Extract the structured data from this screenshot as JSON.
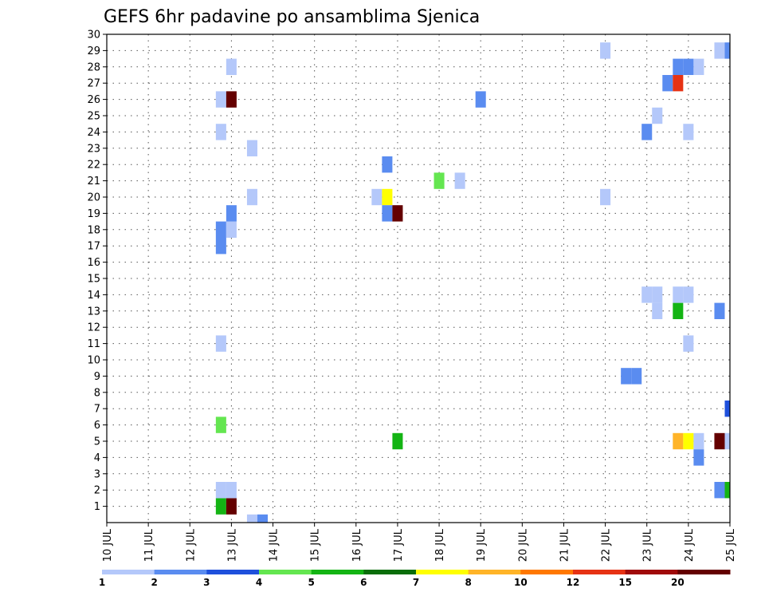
{
  "chart_data": {
    "type": "heatmap",
    "title": "GEFS 6hr padavine po ansamblima Sjenica",
    "xlabel": "",
    "ylabel": "",
    "x_ticks": [
      "10 JUL",
      "11 JUL",
      "12 JUL",
      "13 JUL",
      "14 JUL",
      "15 JUL",
      "16 JUL",
      "17 JUL",
      "18 JUL",
      "19 JUL",
      "20 JUL",
      "21 JUL",
      "22 JUL",
      "23 JUL",
      "24 JUL",
      "25 JUL"
    ],
    "x_range_days": [
      10,
      25
    ],
    "y_ticks": [
      "1",
      "2",
      "3",
      "4",
      "5",
      "6",
      "7",
      "8",
      "9",
      "10",
      "11",
      "12",
      "13",
      "14",
      "15",
      "16",
      "17",
      "18",
      "19",
      "20",
      "21",
      "22",
      "23",
      "24",
      "25",
      "26",
      "27",
      "28",
      "29",
      "30"
    ],
    "y_range": [
      0,
      30
    ],
    "grid": true,
    "colorbar": {
      "labels": [
        "1",
        "2",
        "3",
        "4",
        "5",
        "6",
        "7",
        "8",
        "10",
        "12",
        "15",
        "20"
      ],
      "colors": [
        "#b4c8fa",
        "#5a8cf0",
        "#1e50dc",
        "#64e650",
        "#14b414",
        "#0a6e0a",
        "#ffff00",
        "#ffb428",
        "#ff7800",
        "#e63214",
        "#a00a0a",
        "#640000"
      ]
    },
    "points": [
      {
        "t": 13.5,
        "m": 0,
        "v": 1.5
      },
      {
        "t": 13.75,
        "m": 0,
        "v": 2.5
      },
      {
        "t": 12.75,
        "m": 1,
        "v": 5.5
      },
      {
        "t": 13.0,
        "m": 1,
        "v": 20
      },
      {
        "t": 12.75,
        "m": 2,
        "v": 1.5
      },
      {
        "t": 13.0,
        "m": 2,
        "v": 1.5
      },
      {
        "t": 12.75,
        "m": 6,
        "v": 4.5
      },
      {
        "t": 12.75,
        "m": 11,
        "v": 1.5
      },
      {
        "t": 12.75,
        "m": 17,
        "v": 2.5
      },
      {
        "t": 12.75,
        "m": 18,
        "v": 2.5
      },
      {
        "t": 13.0,
        "m": 18,
        "v": 1.5
      },
      {
        "t": 13.0,
        "m": 19,
        "v": 2.5
      },
      {
        "t": 12.75,
        "m": 24,
        "v": 1.5
      },
      {
        "t": 12.75,
        "m": 26,
        "v": 1.5
      },
      {
        "t": 13.0,
        "m": 26,
        "v": 20
      },
      {
        "t": 13.0,
        "m": 28,
        "v": 1.5
      },
      {
        "t": 13.5,
        "m": 20,
        "v": 1.5
      },
      {
        "t": 13.5,
        "m": 23,
        "v": 1.5
      },
      {
        "t": 16.5,
        "m": 20,
        "v": 1.5
      },
      {
        "t": 16.75,
        "m": 20,
        "v": 7.5
      },
      {
        "t": 16.75,
        "m": 19,
        "v": 2.5
      },
      {
        "t": 17.0,
        "m": 19,
        "v": 20
      },
      {
        "t": 16.75,
        "m": 22,
        "v": 2.5
      },
      {
        "t": 17.0,
        "m": 5,
        "v": 5.5
      },
      {
        "t": 18.0,
        "m": 21,
        "v": 4.5
      },
      {
        "t": 18.5,
        "m": 21,
        "v": 1.5
      },
      {
        "t": 19.0,
        "m": 26,
        "v": 2.5
      },
      {
        "t": 22.0,
        "m": 20,
        "v": 1.5
      },
      {
        "t": 22.0,
        "m": 29,
        "v": 1.5
      },
      {
        "t": 22.5,
        "m": 9,
        "v": 2.5
      },
      {
        "t": 22.75,
        "m": 9,
        "v": 2.5
      },
      {
        "t": 23.0,
        "m": 14,
        "v": 1.5
      },
      {
        "t": 23.25,
        "m": 14,
        "v": 1.5
      },
      {
        "t": 23.25,
        "m": 13,
        "v": 1.5
      },
      {
        "t": 23.0,
        "m": 24,
        "v": 2.5
      },
      {
        "t": 23.25,
        "m": 25,
        "v": 1.5
      },
      {
        "t": 23.5,
        "m": 27,
        "v": 2.5
      },
      {
        "t": 23.75,
        "m": 27,
        "v": 12.5
      },
      {
        "t": 23.75,
        "m": 28,
        "v": 2.5
      },
      {
        "t": 24.0,
        "m": 28,
        "v": 2.5
      },
      {
        "t": 24.25,
        "m": 28,
        "v": 1.5
      },
      {
        "t": 23.75,
        "m": 5,
        "v": 9
      },
      {
        "t": 24.0,
        "m": 5,
        "v": 7.5
      },
      {
        "t": 24.25,
        "m": 5,
        "v": 1.5
      },
      {
        "t": 24.25,
        "m": 4,
        "v": 2.5
      },
      {
        "t": 23.75,
        "m": 13,
        "v": 5.5
      },
      {
        "t": 23.75,
        "m": 14,
        "v": 1.5
      },
      {
        "t": 24.0,
        "m": 14,
        "v": 1.5
      },
      {
        "t": 24.0,
        "m": 11,
        "v": 1.5
      },
      {
        "t": 24.0,
        "m": 24,
        "v": 1.5
      },
      {
        "t": 24.75,
        "m": 13,
        "v": 2.5
      },
      {
        "t": 24.75,
        "m": 5,
        "v": 20
      },
      {
        "t": 25.0,
        "m": 5,
        "v": 1.5
      },
      {
        "t": 24.75,
        "m": 2,
        "v": 2.5
      },
      {
        "t": 25.0,
        "m": 2,
        "v": 5.5
      },
      {
        "t": 25.0,
        "m": 7,
        "v": 3.5
      },
      {
        "t": 24.75,
        "m": 29,
        "v": 1.5
      },
      {
        "t": 25.0,
        "m": 29,
        "v": 2.5
      }
    ]
  }
}
